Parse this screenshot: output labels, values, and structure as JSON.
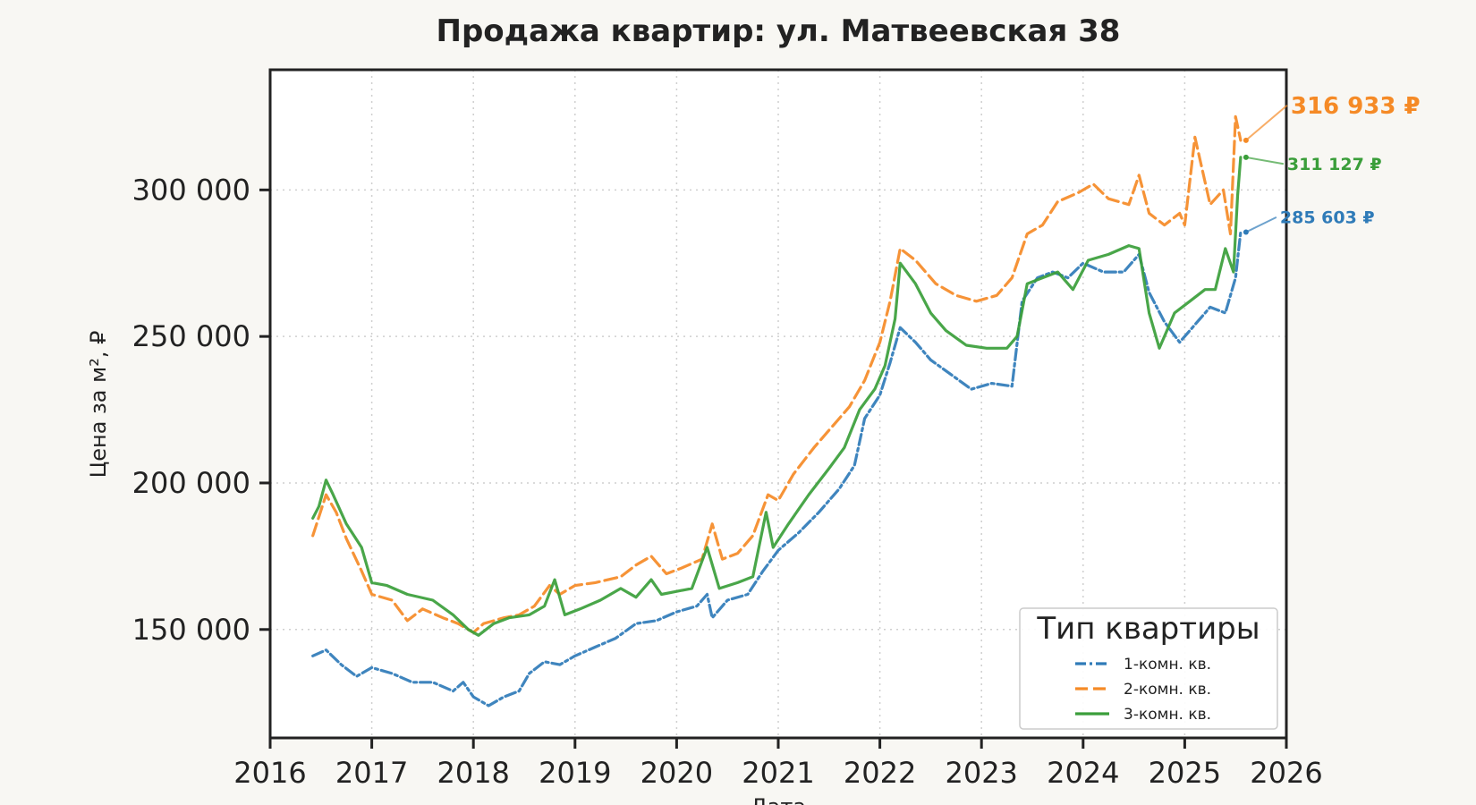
{
  "chart_data": {
    "type": "line",
    "title": "Продажа квартир: ул. Матвеевская 38",
    "xlabel": "Дата",
    "ylabel": "Цена за м², ₽",
    "xlim": [
      2016,
      2026
    ],
    "ylim": [
      113000,
      341000
    ],
    "x_ticks": [
      2016,
      2017,
      2018,
      2019,
      2020,
      2021,
      2022,
      2023,
      2024,
      2025,
      2026
    ],
    "y_ticks": [
      150000,
      200000,
      250000,
      300000
    ],
    "y_tick_labels": [
      "150 000",
      "200 000",
      "250 000",
      "300 000"
    ],
    "grid": true,
    "legend": {
      "title": "Тип квартиры",
      "position": "lower-right"
    },
    "series": [
      {
        "name": "1-комн. кв.",
        "color": "#2f7bb8",
        "style": "dashdot",
        "points": [
          [
            2016.42,
            141000
          ],
          [
            2016.55,
            143000
          ],
          [
            2016.7,
            138000
          ],
          [
            2016.85,
            134000
          ],
          [
            2017.0,
            137000
          ],
          [
            2017.2,
            135000
          ],
          [
            2017.4,
            132000
          ],
          [
            2017.6,
            132000
          ],
          [
            2017.8,
            129000
          ],
          [
            2017.9,
            132000
          ],
          [
            2018.0,
            127000
          ],
          [
            2018.15,
            124000
          ],
          [
            2018.3,
            127000
          ],
          [
            2018.45,
            129000
          ],
          [
            2018.55,
            135000
          ],
          [
            2018.7,
            139000
          ],
          [
            2018.85,
            138000
          ],
          [
            2019.0,
            141000
          ],
          [
            2019.2,
            144000
          ],
          [
            2019.4,
            147000
          ],
          [
            2019.6,
            152000
          ],
          [
            2019.8,
            153000
          ],
          [
            2020.0,
            156000
          ],
          [
            2020.2,
            158000
          ],
          [
            2020.3,
            162000
          ],
          [
            2020.35,
            154000
          ],
          [
            2020.5,
            160000
          ],
          [
            2020.7,
            162000
          ],
          [
            2020.85,
            170000
          ],
          [
            2021.0,
            177000
          ],
          [
            2021.2,
            183000
          ],
          [
            2021.4,
            190000
          ],
          [
            2021.6,
            198000
          ],
          [
            2021.75,
            206000
          ],
          [
            2021.85,
            222000
          ],
          [
            2022.0,
            230000
          ],
          [
            2022.1,
            241000
          ],
          [
            2022.2,
            253000
          ],
          [
            2022.35,
            248000
          ],
          [
            2022.5,
            242000
          ],
          [
            2022.7,
            237000
          ],
          [
            2022.9,
            232000
          ],
          [
            2023.1,
            234000
          ],
          [
            2023.3,
            233000
          ],
          [
            2023.4,
            262000
          ],
          [
            2023.55,
            270000
          ],
          [
            2023.7,
            272000
          ],
          [
            2023.85,
            270000
          ],
          [
            2024.0,
            275000
          ],
          [
            2024.2,
            272000
          ],
          [
            2024.4,
            272000
          ],
          [
            2024.55,
            278000
          ],
          [
            2024.65,
            265000
          ],
          [
            2024.8,
            255000
          ],
          [
            2024.95,
            248000
          ],
          [
            2025.1,
            254000
          ],
          [
            2025.25,
            260000
          ],
          [
            2025.4,
            258000
          ],
          [
            2025.5,
            270000
          ],
          [
            2025.55,
            285603
          ]
        ]
      },
      {
        "name": "2-комн. кв.",
        "color": "#f58a26",
        "style": "dashed",
        "points": [
          [
            2016.42,
            182000
          ],
          [
            2016.55,
            196000
          ],
          [
            2016.65,
            190000
          ],
          [
            2016.75,
            181000
          ],
          [
            2016.9,
            170000
          ],
          [
            2017.0,
            162000
          ],
          [
            2017.2,
            160000
          ],
          [
            2017.35,
            153000
          ],
          [
            2017.5,
            157000
          ],
          [
            2017.7,
            154000
          ],
          [
            2017.85,
            152000
          ],
          [
            2018.0,
            149000
          ],
          [
            2018.1,
            152000
          ],
          [
            2018.3,
            154000
          ],
          [
            2018.45,
            155000
          ],
          [
            2018.6,
            158000
          ],
          [
            2018.75,
            165000
          ],
          [
            2018.85,
            162000
          ],
          [
            2019.0,
            165000
          ],
          [
            2019.2,
            166000
          ],
          [
            2019.45,
            168000
          ],
          [
            2019.6,
            172000
          ],
          [
            2019.75,
            175000
          ],
          [
            2019.9,
            169000
          ],
          [
            2020.05,
            171000
          ],
          [
            2020.25,
            174000
          ],
          [
            2020.35,
            186000
          ],
          [
            2020.45,
            174000
          ],
          [
            2020.6,
            176000
          ],
          [
            2020.75,
            182000
          ],
          [
            2020.9,
            196000
          ],
          [
            2021.0,
            194000
          ],
          [
            2021.15,
            203000
          ],
          [
            2021.35,
            212000
          ],
          [
            2021.55,
            220000
          ],
          [
            2021.7,
            226000
          ],
          [
            2021.85,
            235000
          ],
          [
            2022.0,
            248000
          ],
          [
            2022.1,
            262000
          ],
          [
            2022.2,
            280000
          ],
          [
            2022.35,
            276000
          ],
          [
            2022.55,
            268000
          ],
          [
            2022.75,
            264000
          ],
          [
            2022.95,
            262000
          ],
          [
            2023.15,
            264000
          ],
          [
            2023.3,
            270000
          ],
          [
            2023.45,
            285000
          ],
          [
            2023.6,
            288000
          ],
          [
            2023.75,
            296000
          ],
          [
            2023.95,
            299000
          ],
          [
            2024.1,
            302000
          ],
          [
            2024.25,
            297000
          ],
          [
            2024.45,
            295000
          ],
          [
            2024.55,
            305000
          ],
          [
            2024.65,
            292000
          ],
          [
            2024.8,
            288000
          ],
          [
            2024.95,
            292000
          ],
          [
            2025.0,
            288000
          ],
          [
            2025.1,
            318000
          ],
          [
            2025.25,
            295000
          ],
          [
            2025.38,
            300000
          ],
          [
            2025.45,
            285000
          ],
          [
            2025.5,
            325000
          ],
          [
            2025.55,
            316933
          ]
        ]
      },
      {
        "name": "3-комн. кв.",
        "color": "#3a9e3a",
        "style": "solid",
        "points": [
          [
            2016.42,
            188000
          ],
          [
            2016.48,
            192000
          ],
          [
            2016.55,
            201000
          ],
          [
            2016.62,
            196000
          ],
          [
            2016.75,
            186000
          ],
          [
            2016.9,
            178000
          ],
          [
            2017.0,
            166000
          ],
          [
            2017.15,
            165000
          ],
          [
            2017.35,
            162000
          ],
          [
            2017.6,
            160000
          ],
          [
            2017.8,
            155000
          ],
          [
            2017.95,
            150000
          ],
          [
            2018.05,
            148000
          ],
          [
            2018.2,
            152000
          ],
          [
            2018.35,
            154000
          ],
          [
            2018.55,
            155000
          ],
          [
            2018.7,
            158000
          ],
          [
            2018.8,
            167000
          ],
          [
            2018.9,
            155000
          ],
          [
            2019.05,
            157000
          ],
          [
            2019.25,
            160000
          ],
          [
            2019.45,
            164000
          ],
          [
            2019.6,
            161000
          ],
          [
            2019.75,
            167000
          ],
          [
            2019.85,
            162000
          ],
          [
            2020.0,
            163000
          ],
          [
            2020.15,
            164000
          ],
          [
            2020.3,
            178000
          ],
          [
            2020.42,
            164000
          ],
          [
            2020.6,
            166000
          ],
          [
            2020.75,
            168000
          ],
          [
            2020.88,
            190000
          ],
          [
            2020.95,
            178000
          ],
          [
            2021.1,
            186000
          ],
          [
            2021.3,
            196000
          ],
          [
            2021.5,
            205000
          ],
          [
            2021.65,
            212000
          ],
          [
            2021.8,
            225000
          ],
          [
            2021.95,
            232000
          ],
          [
            2022.05,
            240000
          ],
          [
            2022.15,
            256000
          ],
          [
            2022.2,
            275000
          ],
          [
            2022.35,
            268000
          ],
          [
            2022.5,
            258000
          ],
          [
            2022.65,
            252000
          ],
          [
            2022.85,
            247000
          ],
          [
            2023.05,
            246000
          ],
          [
            2023.25,
            246000
          ],
          [
            2023.35,
            250000
          ],
          [
            2023.45,
            268000
          ],
          [
            2023.6,
            270000
          ],
          [
            2023.75,
            272000
          ],
          [
            2023.9,
            266000
          ],
          [
            2024.05,
            276000
          ],
          [
            2024.25,
            278000
          ],
          [
            2024.45,
            281000
          ],
          [
            2024.55,
            280000
          ],
          [
            2024.65,
            258000
          ],
          [
            2024.75,
            246000
          ],
          [
            2024.9,
            258000
          ],
          [
            2025.05,
            262000
          ],
          [
            2025.2,
            266000
          ],
          [
            2025.3,
            266000
          ],
          [
            2025.4,
            280000
          ],
          [
            2025.48,
            272000
          ],
          [
            2025.52,
            298000
          ],
          [
            2025.55,
            311127
          ]
        ]
      }
    ],
    "annotations": [
      {
        "text": "316 933 ₽",
        "series": "2-комн. кв.",
        "color": "#f58a26"
      },
      {
        "text": "311 127 ₽",
        "series": "3-комн. кв.",
        "color": "#3a9e3a"
      },
      {
        "text": "285 603 ₽",
        "series": "1-комн. кв.",
        "color": "#2f7bb8"
      }
    ]
  }
}
